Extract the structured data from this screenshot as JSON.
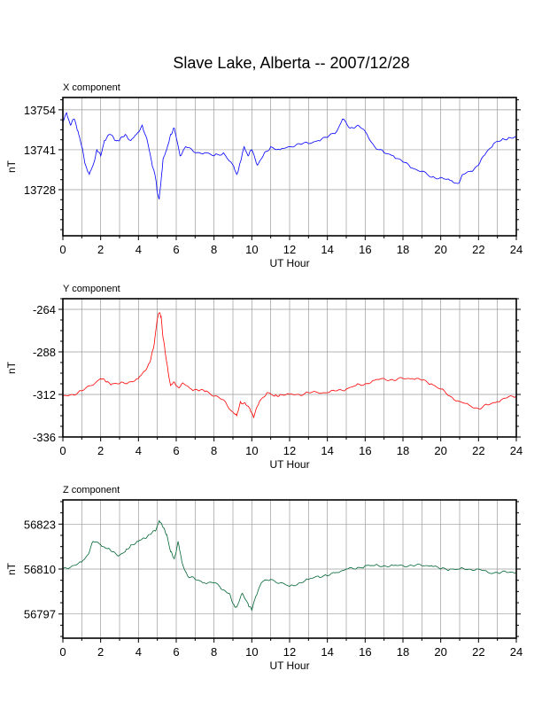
{
  "title": "Slave Lake, Alberta -- 2007/12/28",
  "colors": {
    "x": "#0000ff",
    "y": "#ff0000",
    "z": "#006633"
  },
  "chart_data": [
    {
      "type": "line",
      "title": "X component",
      "xlabel": "UT Hour",
      "ylabel": "nT",
      "xlim": [
        0,
        24
      ],
      "ylim": [
        13713,
        13758
      ],
      "xticks": [
        0,
        2,
        4,
        6,
        8,
        10,
        12,
        14,
        16,
        18,
        20,
        22,
        24
      ],
      "xtick_labels": [
        "0",
        "2",
        "4",
        "6",
        "8",
        "10",
        "12",
        "14",
        "16",
        "18",
        "20",
        "22",
        "24"
      ],
      "yticks": [
        13728,
        13741,
        13754
      ],
      "ytick_labels": [
        "13728",
        "13741",
        "13754"
      ],
      "grid": true,
      "series": [
        {
          "color": "#0000ff",
          "x": [
            0,
            0.2,
            0.4,
            0.6,
            0.8,
            1.0,
            1.2,
            1.4,
            1.6,
            1.8,
            2.0,
            2.2,
            2.5,
            2.8,
            3.0,
            3.3,
            3.6,
            3.9,
            4.2,
            4.5,
            4.7,
            4.9,
            5.0,
            5.1,
            5.2,
            5.3,
            5.5,
            5.7,
            5.9,
            6.2,
            6.5,
            7.0,
            7.5,
            8.0,
            8.5,
            9.0,
            9.2,
            9.4,
            9.6,
            9.8,
            10.0,
            10.3,
            10.6,
            11.0,
            11.5,
            12.0,
            12.5,
            13.0,
            13.5,
            14.0,
            14.5,
            14.8,
            15.2,
            15.6,
            16.0,
            16.5,
            17.0,
            17.5,
            18.0,
            18.5,
            19.0,
            19.5,
            20.0,
            20.5,
            20.9,
            21.2,
            21.6,
            22.0,
            22.4,
            22.8,
            23.2,
            23.6,
            24.0
          ],
          "y": [
            13750,
            13753,
            13749,
            13751,
            13747,
            13742,
            13736,
            13733,
            13736,
            13741,
            13739,
            13744,
            13746,
            13744,
            13744,
            13746,
            13744,
            13746,
            13749,
            13743,
            13737,
            13732,
            13727,
            13725,
            13731,
            13738,
            13741,
            13746,
            13748,
            13739,
            13742,
            13740,
            13740,
            13739,
            13740,
            13736,
            13733,
            13737,
            13742,
            13739,
            13741,
            13736,
            13739,
            13742,
            13741,
            13742,
            13743,
            13743,
            13744,
            13745,
            13747,
            13751,
            13748,
            13749,
            13747,
            13742,
            13740,
            13739,
            13737,
            13735,
            13734,
            13732,
            13732,
            13731,
            13730,
            13733,
            13734,
            13736,
            13740,
            13743,
            13744,
            13745,
            13745
          ]
        }
      ]
    },
    {
      "type": "line",
      "title": "Y component",
      "xlabel": "UT Hour",
      "ylabel": "nT",
      "xlim": [
        0,
        24
      ],
      "ylim": [
        -336,
        -258
      ],
      "xticks": [
        0,
        2,
        4,
        6,
        8,
        10,
        12,
        14,
        16,
        18,
        20,
        22,
        24
      ],
      "xtick_labels": [
        "0",
        "2",
        "4",
        "6",
        "8",
        "10",
        "12",
        "14",
        "16",
        "18",
        "20",
        "22",
        "24"
      ],
      "yticks": [
        -336,
        -312,
        -288,
        -264
      ],
      "ytick_labels": [
        "-336",
        "-312",
        "-288",
        "-264"
      ],
      "grid": true,
      "series": [
        {
          "color": "#ff0000",
          "x": [
            0,
            0.5,
            1.0,
            1.5,
            2.0,
            2.3,
            2.6,
            3.0,
            3.5,
            4.0,
            4.3,
            4.6,
            4.8,
            5.0,
            5.1,
            5.2,
            5.3,
            5.5,
            5.7,
            5.9,
            6.1,
            6.4,
            6.8,
            7.2,
            7.6,
            8.0,
            8.5,
            9.0,
            9.2,
            9.4,
            9.7,
            9.9,
            10.1,
            10.4,
            10.8,
            11.2,
            11.5,
            12.0,
            12.5,
            13.0,
            13.5,
            14.0,
            14.5,
            15.0,
            15.5,
            16.0,
            16.5,
            17.0,
            17.5,
            18.0,
            18.5,
            19.0,
            19.5,
            20.0,
            20.5,
            21.0,
            21.5,
            22.0,
            22.5,
            23.0,
            23.5,
            24.0
          ],
          "y": [
            -313,
            -312,
            -310,
            -307,
            -303,
            -305,
            -306,
            -306,
            -305,
            -303,
            -299,
            -294,
            -286,
            -269,
            -266,
            -268,
            -280,
            -294,
            -307,
            -305,
            -308,
            -306,
            -309,
            -310,
            -310,
            -313,
            -315,
            -322,
            -324,
            -316,
            -318,
            -320,
            -325,
            -316,
            -311,
            -313,
            -312,
            -312,
            -312,
            -311,
            -311,
            -311,
            -310,
            -309,
            -307,
            -306,
            -304,
            -303,
            -304,
            -303,
            -303,
            -304,
            -306,
            -309,
            -313,
            -316,
            -318,
            -320,
            -318,
            -316,
            -314,
            -313
          ]
        }
      ]
    },
    {
      "type": "line",
      "title": "Z component",
      "xlabel": "UT Hour",
      "ylabel": "nT",
      "xlim": [
        0,
        24
      ],
      "ylim": [
        56790,
        56830
      ],
      "xticks": [
        0,
        2,
        4,
        6,
        8,
        10,
        12,
        14,
        16,
        18,
        20,
        22,
        24
      ],
      "xtick_labels": [
        "0",
        "2",
        "4",
        "6",
        "8",
        "10",
        "12",
        "14",
        "16",
        "18",
        "20",
        "22",
        "24"
      ],
      "yticks": [
        56797,
        56810,
        56823
      ],
      "ytick_labels": [
        "56797",
        "56810",
        "56823"
      ],
      "grid": true,
      "series": [
        {
          "color": "#006633",
          "x": [
            0,
            0.5,
            1.0,
            1.3,
            1.6,
            2.0,
            2.3,
            2.6,
            3.0,
            3.3,
            3.6,
            4.0,
            4.3,
            4.6,
            4.9,
            5.1,
            5.3,
            5.5,
            5.7,
            5.9,
            6.1,
            6.3,
            6.6,
            7.0,
            7.5,
            8.0,
            8.5,
            8.8,
            9.0,
            9.2,
            9.5,
            9.8,
            10.0,
            10.2,
            10.5,
            11.0,
            11.5,
            12.0,
            12.5,
            13.0,
            13.5,
            14.0,
            14.5,
            15.0,
            15.5,
            16.0,
            16.5,
            17.0,
            17.5,
            18.0,
            18.5,
            19.0,
            19.5,
            20.0,
            20.5,
            21.0,
            21.5,
            22.0,
            22.5,
            23.0,
            23.5,
            24.0
          ],
          "y": [
            56810,
            56811,
            56812,
            56814,
            56818,
            56817,
            56816,
            56815,
            56814,
            56815,
            56817,
            56818,
            56819,
            56820,
            56821,
            56824,
            56822,
            56820,
            56815,
            56813,
            56818,
            56812,
            56808,
            56807,
            56806,
            56806,
            56804,
            56803,
            56800,
            56799,
            56803,
            56800,
            56798,
            56802,
            56806,
            56807,
            56806,
            56805,
            56806,
            56807,
            56808,
            56808,
            56809,
            56810,
            56810,
            56811,
            56811,
            56811,
            56811,
            56811,
            56811,
            56811,
            56811,
            56810,
            56810,
            56810,
            56810,
            56810,
            56809,
            56809,
            56809,
            56809
          ]
        }
      ]
    }
  ]
}
